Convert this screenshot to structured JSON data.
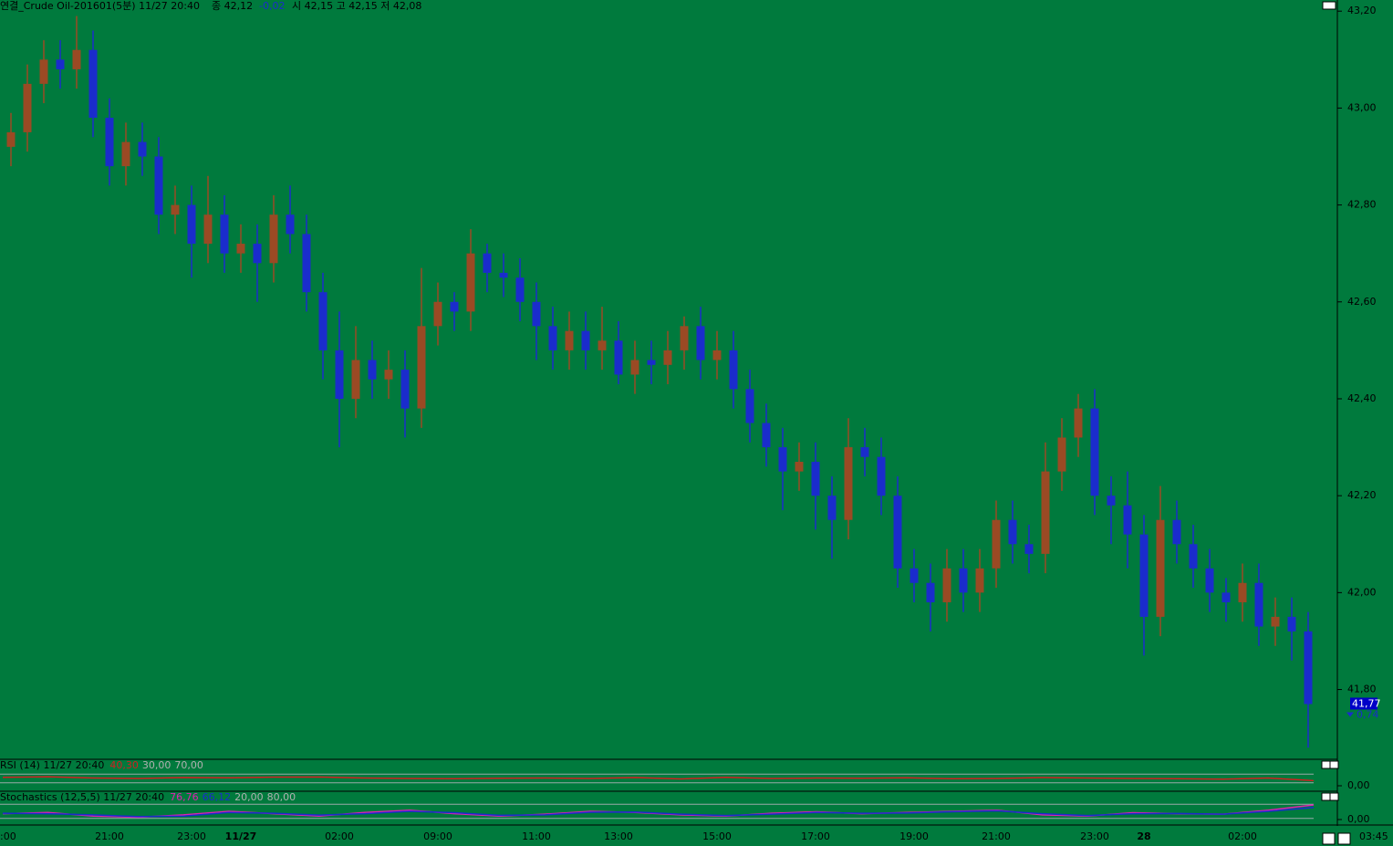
{
  "header": {
    "title": "연결_Crude Oil-201601(5분) 11/27 20:40",
    "close": "종 42,12",
    "change": "-0,02",
    "ohlc": "시 42,15 고 42,15 저 42,08"
  },
  "chart_data": {
    "type": "candlestick",
    "categories": [
      ":00",
      null,
      null,
      null,
      null,
      null,
      "21:00",
      null,
      null,
      null,
      null,
      "23:00",
      null,
      null,
      "11/27",
      null,
      null,
      null,
      null,
      null,
      "02:00",
      null,
      null,
      null,
      null,
      null,
      "09:00",
      null,
      null,
      null,
      null,
      null,
      "11:00",
      null,
      null,
      null,
      null,
      "13:00",
      null,
      null,
      null,
      null,
      null,
      "15:00",
      null,
      null,
      null,
      null,
      null,
      "17:00",
      null,
      null,
      null,
      null,
      null,
      "19:00",
      null,
      null,
      null,
      null,
      "21:00",
      null,
      null,
      null,
      null,
      null,
      "23:00",
      null,
      null,
      "28",
      null,
      null,
      null,
      null,
      null,
      "02:00",
      null,
      null,
      null,
      null
    ],
    "last_time": "03:45",
    "open": [
      42.92,
      42.95,
      43.05,
      43.1,
      43.08,
      43.12,
      42.98,
      42.88,
      42.93,
      42.9,
      42.78,
      42.8,
      42.72,
      42.78,
      42.7,
      42.72,
      42.68,
      42.78,
      42.74,
      42.62,
      42.5,
      42.4,
      42.48,
      42.44,
      42.46,
      42.38,
      42.55,
      42.6,
      42.58,
      42.7,
      42.66,
      42.65,
      42.6,
      42.55,
      42.5,
      42.54,
      42.5,
      42.52,
      42.45,
      42.48,
      42.47,
      42.5,
      42.55,
      42.48,
      42.5,
      42.42,
      42.35,
      42.3,
      42.25,
      42.27,
      42.2,
      42.15,
      42.3,
      42.28,
      42.2,
      42.05,
      42.02,
      41.98,
      42.05,
      42.0,
      42.05,
      42.15,
      42.1,
      42.08,
      42.25,
      42.32,
      42.38,
      42.2,
      42.18,
      42.12,
      41.95,
      42.15,
      42.1,
      42.05,
      42.0,
      41.98,
      42.02,
      41.93,
      41.95,
      41.92
    ],
    "high": [
      42.99,
      43.09,
      43.14,
      43.14,
      43.19,
      43.16,
      43.02,
      42.97,
      42.97,
      42.94,
      42.84,
      42.84,
      42.86,
      42.82,
      42.76,
      42.76,
      42.82,
      42.84,
      42.78,
      42.66,
      42.58,
      42.55,
      42.52,
      42.5,
      42.5,
      42.67,
      42.64,
      42.62,
      42.75,
      42.72,
      42.7,
      42.69,
      42.64,
      42.59,
      42.58,
      42.58,
      42.59,
      42.56,
      42.52,
      42.52,
      42.54,
      42.57,
      42.59,
      42.54,
      42.54,
      42.46,
      42.39,
      42.34,
      42.31,
      42.31,
      42.24,
      42.36,
      42.34,
      42.32,
      42.24,
      42.09,
      42.06,
      42.09,
      42.09,
      42.09,
      42.19,
      42.19,
      42.14,
      42.31,
      42.36,
      42.41,
      42.42,
      42.24,
      42.25,
      42.16,
      42.22,
      42.19,
      42.14,
      42.09,
      42.03,
      42.06,
      42.06,
      41.99,
      41.99,
      41.96
    ],
    "low": [
      42.88,
      42.91,
      43.01,
      43.04,
      43.04,
      42.94,
      42.84,
      42.84,
      42.86,
      42.74,
      42.74,
      42.65,
      42.68,
      42.66,
      42.66,
      42.6,
      42.64,
      42.7,
      42.58,
      42.44,
      42.3,
      42.36,
      42.4,
      42.4,
      42.32,
      42.34,
      42.51,
      42.54,
      42.54,
      42.62,
      42.61,
      42.56,
      42.48,
      42.46,
      42.46,
      42.46,
      42.46,
      42.43,
      42.41,
      42.43,
      42.43,
      42.46,
      42.44,
      42.44,
      42.38,
      42.31,
      42.26,
      42.17,
      42.21,
      42.13,
      42.07,
      42.11,
      42.24,
      42.16,
      42.01,
      41.98,
      41.92,
      41.94,
      41.96,
      41.96,
      42.01,
      42.06,
      42.04,
      42.04,
      42.21,
      42.28,
      42.16,
      42.1,
      42.05,
      41.87,
      41.91,
      42.06,
      42.01,
      41.96,
      41.94,
      41.94,
      41.89,
      41.89,
      41.86,
      41.68
    ],
    "close": [
      42.95,
      43.05,
      43.1,
      43.08,
      43.12,
      42.98,
      42.88,
      42.93,
      42.9,
      42.78,
      42.8,
      42.72,
      42.78,
      42.7,
      42.72,
      42.68,
      42.78,
      42.74,
      42.62,
      42.5,
      42.4,
      42.48,
      42.44,
      42.46,
      42.38,
      42.55,
      42.6,
      42.58,
      42.7,
      42.66,
      42.65,
      42.6,
      42.55,
      42.5,
      42.54,
      42.5,
      42.52,
      42.45,
      42.48,
      42.47,
      42.5,
      42.55,
      42.48,
      42.5,
      42.42,
      42.35,
      42.3,
      42.25,
      42.27,
      42.2,
      42.15,
      42.3,
      42.28,
      42.2,
      42.05,
      42.02,
      41.98,
      42.05,
      42.0,
      42.05,
      42.15,
      42.1,
      42.08,
      42.25,
      42.32,
      42.38,
      42.2,
      42.18,
      42.12,
      41.95,
      42.15,
      42.1,
      42.05,
      42.0,
      41.98,
      42.02,
      41.93,
      41.95,
      41.92,
      41.77
    ],
    "up_color": "#9a4a24",
    "down_color": "#1a2ccc",
    "ylim": [
      41.656,
      43.223
    ],
    "yticks": [
      {
        "value": 43.2,
        "label": "43,20"
      },
      {
        "value": 43.0,
        "label": "43,00"
      },
      {
        "value": 42.8,
        "label": "42,80"
      },
      {
        "value": 42.6,
        "label": "42,60"
      },
      {
        "value": 42.4,
        "label": "42,40"
      },
      {
        "value": 42.2,
        "label": "42,20"
      },
      {
        "value": 42.0,
        "label": "42,00"
      },
      {
        "value": 41.8,
        "label": "41,80"
      }
    ],
    "last_price": {
      "value": 41.77,
      "label": "41,77"
    },
    "last_change": "0,74",
    "panes": [
      {
        "title": "RSI  (14) 11/27 20:40",
        "ylim": [
          0,
          100
        ],
        "yticks": [
          {
            "value": 0,
            "label": "0,00"
          }
        ],
        "levels": [
          {
            "value": 30,
            "label": "30,00"
          },
          {
            "value": 70,
            "label": "70,00"
          }
        ],
        "series": [
          {
            "name": "40,30",
            "color": "#d02020",
            "values": [
              55,
              58,
              52,
              50,
              54,
              53,
              56,
              57,
              52,
              50,
              49,
              51,
              52,
              50,
              54,
              48,
              55,
              50,
              52,
              51,
              53,
              49,
              50,
              54,
              52,
              50,
              49,
              47,
              52,
              40.3
            ]
          }
        ]
      },
      {
        "title": "Stochastics  (12,5,5) 11/27 20:40",
        "ylim": [
          0,
          100
        ],
        "yticks": [
          {
            "value": 0,
            "label": "0,00"
          }
        ],
        "levels": [
          {
            "value": 20,
            "label": "20,00"
          },
          {
            "value": 80,
            "label": "80,00"
          }
        ],
        "series": [
          {
            "name": "76,76",
            "color": "#e020b0",
            "values": [
              40,
              45,
              30,
              25,
              35,
              50,
              40,
              30,
              45,
              55,
              40,
              30,
              38,
              50,
              45,
              35,
              30,
              42,
              48,
              40,
              45,
              50,
              55,
              35,
              30,
              44,
              40,
              38,
              55,
              76.76
            ]
          },
          {
            "name": "66,12",
            "color": "#1a2ccc",
            "values": [
              42,
              40,
              35,
              28,
              30,
              45,
              42,
              34,
              40,
              50,
              44,
              33,
              35,
              46,
              47,
              38,
              32,
              38,
              45,
              42,
              43,
              48,
              52,
              40,
              32,
              40,
              41,
              38,
              50,
              66.12
            ]
          }
        ]
      }
    ]
  }
}
